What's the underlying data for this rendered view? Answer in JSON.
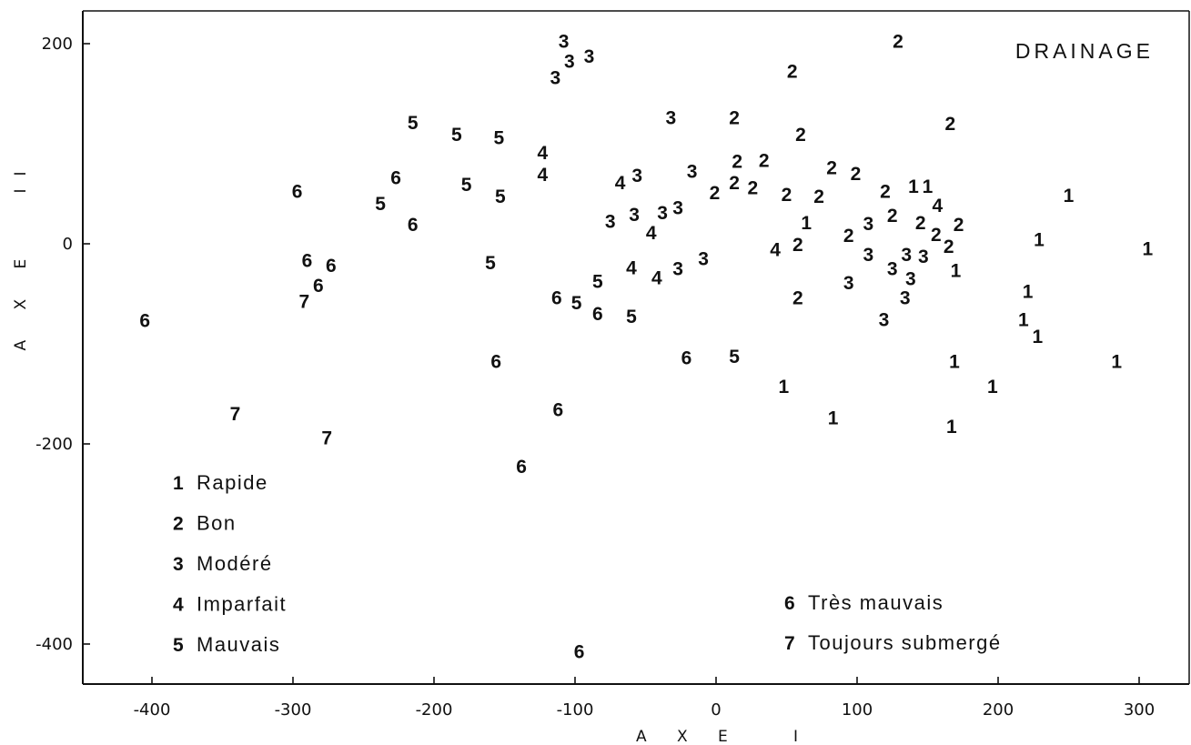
{
  "chart_data": {
    "type": "scatter",
    "title": "DRAINAGE",
    "xlabel": "A X E   I",
    "ylabel": "A X E   II",
    "xlim": [
      -440,
      330
    ],
    "ylim": [
      -440,
      235
    ],
    "x_ticks": [
      -400,
      -300,
      -200,
      -100,
      0,
      100,
      200,
      300
    ],
    "y_ticks": [
      -400,
      -200,
      0,
      200
    ],
    "x_tick_labels": [
      "-400",
      "-300",
      "-200",
      "-100",
      "0",
      "100",
      "200",
      "300"
    ],
    "y_tick_labels": [
      "-400",
      "-200",
      "0",
      "200"
    ],
    "grid": false,
    "legend_position": "bottom-left",
    "legend": [
      {
        "code": "1",
        "label": "Rapide"
      },
      {
        "code": "2",
        "label": "Bon"
      },
      {
        "code": "3",
        "label": "Modéré"
      },
      {
        "code": "4",
        "label": "Imparfait"
      },
      {
        "code": "5",
        "label": "Mauvais"
      },
      {
        "code": "6",
        "label": "Très mauvais"
      },
      {
        "code": "7",
        "label": "Toujours submergé"
      }
    ],
    "points": [
      {
        "x": 129,
        "y": 203,
        "label": "2"
      },
      {
        "x": 54,
        "y": 173,
        "label": "2"
      },
      {
        "x": 166,
        "y": 121,
        "label": "2"
      },
      {
        "x": 13,
        "y": 127,
        "label": "2"
      },
      {
        "x": 60,
        "y": 110,
        "label": "2"
      },
      {
        "x": 15,
        "y": 83,
        "label": "2"
      },
      {
        "x": 34,
        "y": 84,
        "label": "2"
      },
      {
        "x": 13,
        "y": 62,
        "label": "2"
      },
      {
        "x": 26,
        "y": 57,
        "label": "2"
      },
      {
        "x": -1,
        "y": 52,
        "label": "2"
      },
      {
        "x": 50,
        "y": 50,
        "label": "2"
      },
      {
        "x": 73,
        "y": 48,
        "label": "2"
      },
      {
        "x": 82,
        "y": 77,
        "label": "2"
      },
      {
        "x": 99,
        "y": 71,
        "label": "2"
      },
      {
        "x": 120,
        "y": 53,
        "label": "2"
      },
      {
        "x": 125,
        "y": 29,
        "label": "2"
      },
      {
        "x": 145,
        "y": 22,
        "label": "2"
      },
      {
        "x": 156,
        "y": 10,
        "label": "2"
      },
      {
        "x": 172,
        "y": 20,
        "label": "2"
      },
      {
        "x": 165,
        "y": -2,
        "label": "2"
      },
      {
        "x": 94,
        "y": 9,
        "label": "2"
      },
      {
        "x": 58,
        "y": 0,
        "label": "2"
      },
      {
        "x": 58,
        "y": -53,
        "label": "2"
      },
      {
        "x": -108,
        "y": 203,
        "label": "3"
      },
      {
        "x": -104,
        "y": 183,
        "label": "3"
      },
      {
        "x": -90,
        "y": 188,
        "label": "3"
      },
      {
        "x": -114,
        "y": 167,
        "label": "3"
      },
      {
        "x": -32,
        "y": 127,
        "label": "3"
      },
      {
        "x": -56,
        "y": 69,
        "label": "3"
      },
      {
        "x": -17,
        "y": 73,
        "label": "3"
      },
      {
        "x": -75,
        "y": 23,
        "label": "3"
      },
      {
        "x": -58,
        "y": 30,
        "label": "3"
      },
      {
        "x": -38,
        "y": 32,
        "label": "3"
      },
      {
        "x": -27,
        "y": 37,
        "label": "3"
      },
      {
        "x": -9,
        "y": -14,
        "label": "3"
      },
      {
        "x": -27,
        "y": -24,
        "label": "3"
      },
      {
        "x": 108,
        "y": 21,
        "label": "3"
      },
      {
        "x": 108,
        "y": -10,
        "label": "3"
      },
      {
        "x": 135,
        "y": -10,
        "label": "3"
      },
      {
        "x": 147,
        "y": -12,
        "label": "3"
      },
      {
        "x": 125,
        "y": -24,
        "label": "3"
      },
      {
        "x": 138,
        "y": -34,
        "label": "3"
      },
      {
        "x": 94,
        "y": -38,
        "label": "3"
      },
      {
        "x": 134,
        "y": -53,
        "label": "3"
      },
      {
        "x": 119,
        "y": -75,
        "label": "3"
      },
      {
        "x": -123,
        "y": 92,
        "label": "4"
      },
      {
        "x": -123,
        "y": 70,
        "label": "4"
      },
      {
        "x": -68,
        "y": 62,
        "label": "4"
      },
      {
        "x": -46,
        "y": 12,
        "label": "4"
      },
      {
        "x": -60,
        "y": -23,
        "label": "4"
      },
      {
        "x": -42,
        "y": -33,
        "label": "4"
      },
      {
        "x": 42,
        "y": -5,
        "label": "4"
      },
      {
        "x": 157,
        "y": 39,
        "label": "4"
      },
      {
        "x": -215,
        "y": 122,
        "label": "5"
      },
      {
        "x": -184,
        "y": 110,
        "label": "5"
      },
      {
        "x": -154,
        "y": 107,
        "label": "5"
      },
      {
        "x": -177,
        "y": 60,
        "label": "5"
      },
      {
        "x": -153,
        "y": 48,
        "label": "5"
      },
      {
        "x": -238,
        "y": 41,
        "label": "5"
      },
      {
        "x": -160,
        "y": -18,
        "label": "5"
      },
      {
        "x": -84,
        "y": -37,
        "label": "5"
      },
      {
        "x": -99,
        "y": -58,
        "label": "5"
      },
      {
        "x": -60,
        "y": -72,
        "label": "5"
      },
      {
        "x": 13,
        "y": -112,
        "label": "5"
      },
      {
        "x": -227,
        "y": 67,
        "label": "6"
      },
      {
        "x": -297,
        "y": 53,
        "label": "6"
      },
      {
        "x": -215,
        "y": 20,
        "label": "6"
      },
      {
        "x": -290,
        "y": -16,
        "label": "6"
      },
      {
        "x": -273,
        "y": -21,
        "label": "6"
      },
      {
        "x": -282,
        "y": -41,
        "label": "6"
      },
      {
        "x": -405,
        "y": -76,
        "label": "6"
      },
      {
        "x": -113,
        "y": -53,
        "label": "6"
      },
      {
        "x": -84,
        "y": -69,
        "label": "6"
      },
      {
        "x": -156,
        "y": -117,
        "label": "6"
      },
      {
        "x": -21,
        "y": -113,
        "label": "6"
      },
      {
        "x": -112,
        "y": -165,
        "label": "6"
      },
      {
        "x": -138,
        "y": -222,
        "label": "6"
      },
      {
        "x": -97,
        "y": -407,
        "label": "6"
      },
      {
        "x": -292,
        "y": -57,
        "label": "7"
      },
      {
        "x": -341,
        "y": -169,
        "label": "7"
      },
      {
        "x": -276,
        "y": -193,
        "label": "7"
      },
      {
        "x": 250,
        "y": 49,
        "label": "1"
      },
      {
        "x": 229,
        "y": 5,
        "label": "1"
      },
      {
        "x": 306,
        "y": -4,
        "label": "1"
      },
      {
        "x": 64,
        "y": 22,
        "label": "1"
      },
      {
        "x": 140,
        "y": 58,
        "label": "1"
      },
      {
        "x": 150,
        "y": 58,
        "label": "1"
      },
      {
        "x": 170,
        "y": -26,
        "label": "1"
      },
      {
        "x": 221,
        "y": -47,
        "label": "1"
      },
      {
        "x": 218,
        "y": -75,
        "label": "1"
      },
      {
        "x": 228,
        "y": -92,
        "label": "1"
      },
      {
        "x": 169,
        "y": -117,
        "label": "1"
      },
      {
        "x": 284,
        "y": -117,
        "label": "1"
      },
      {
        "x": 196,
        "y": -142,
        "label": "1"
      },
      {
        "x": 48,
        "y": -142,
        "label": "1"
      },
      {
        "x": 83,
        "y": -173,
        "label": "1"
      },
      {
        "x": 167,
        "y": -182,
        "label": "1"
      }
    ]
  }
}
